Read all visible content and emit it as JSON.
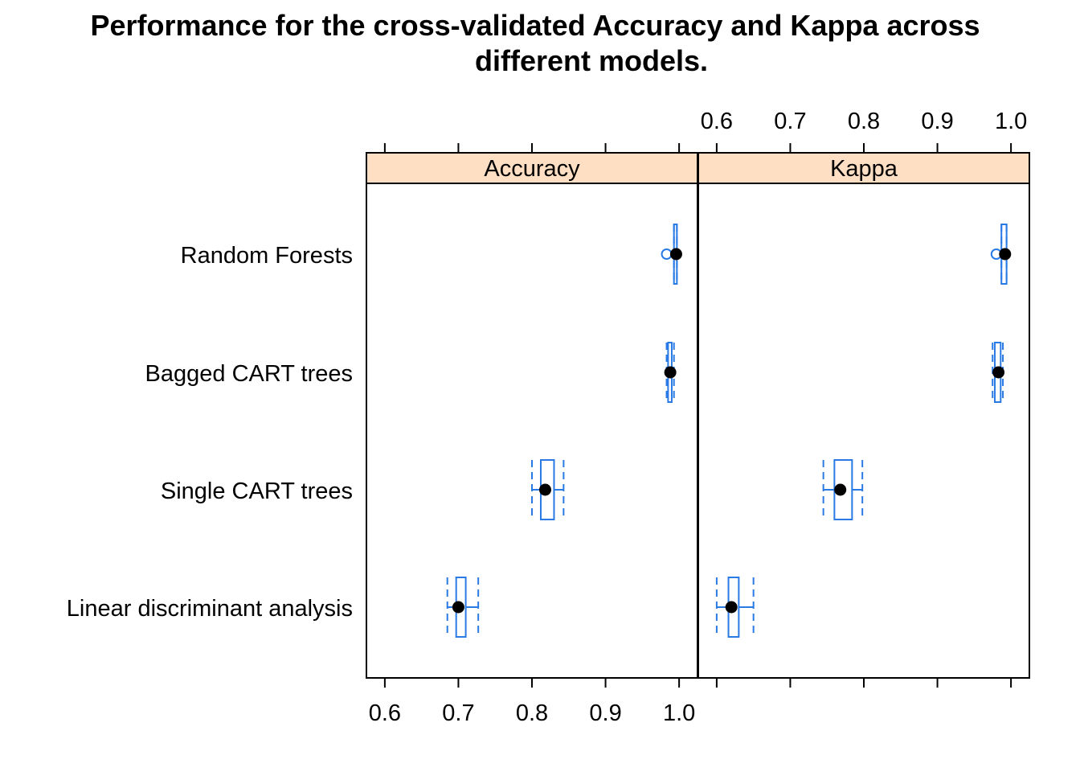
{
  "chart_data": {
    "type": "box",
    "title_line1": "Performance for the cross-validated Accuracy and Kappa across",
    "title_line2": "different models.",
    "panels": [
      "Accuracy",
      "Kappa"
    ],
    "categories": [
      "Random Forests",
      "Bagged CART trees",
      "Single CART trees",
      "Linear discriminant analysis"
    ],
    "xlim": [
      0.575,
      1.025
    ],
    "ticks": [
      0.6,
      0.7,
      0.8,
      0.9,
      1.0
    ],
    "tick_labels": [
      "0.6",
      "0.7",
      "0.8",
      "0.9",
      "1.0"
    ],
    "grid": false,
    "strip_color": "#ffdfc4",
    "box_color": "#2a7ae5",
    "boxes": {
      "Accuracy": [
        {
          "min": 0.993,
          "q1": 0.993,
          "median": 0.996,
          "q3": 0.997,
          "max": 0.997,
          "outliers": [
            0.983
          ]
        },
        {
          "min": 0.983,
          "q1": 0.985,
          "median": 0.988,
          "q3": 0.99,
          "max": 0.993,
          "outliers": []
        },
        {
          "min": 0.8,
          "q1": 0.812,
          "median": 0.818,
          "q3": 0.83,
          "max": 0.843,
          "outliers": []
        },
        {
          "min": 0.685,
          "q1": 0.697,
          "median": 0.7,
          "q3": 0.71,
          "max": 0.727,
          "outliers": []
        }
      ],
      "Kappa": [
        {
          "min": 0.987,
          "q1": 0.987,
          "median": 0.992,
          "q3": 0.994,
          "max": 0.994,
          "outliers": [
            0.98
          ]
        },
        {
          "min": 0.975,
          "q1": 0.978,
          "median": 0.983,
          "q3": 0.986,
          "max": 0.989,
          "outliers": []
        },
        {
          "min": 0.745,
          "q1": 0.76,
          "median": 0.768,
          "q3": 0.784,
          "max": 0.798,
          "outliers": []
        },
        {
          "min": 0.6,
          "q1": 0.616,
          "median": 0.62,
          "q3": 0.63,
          "max": 0.65,
          "outliers": []
        }
      ]
    }
  }
}
